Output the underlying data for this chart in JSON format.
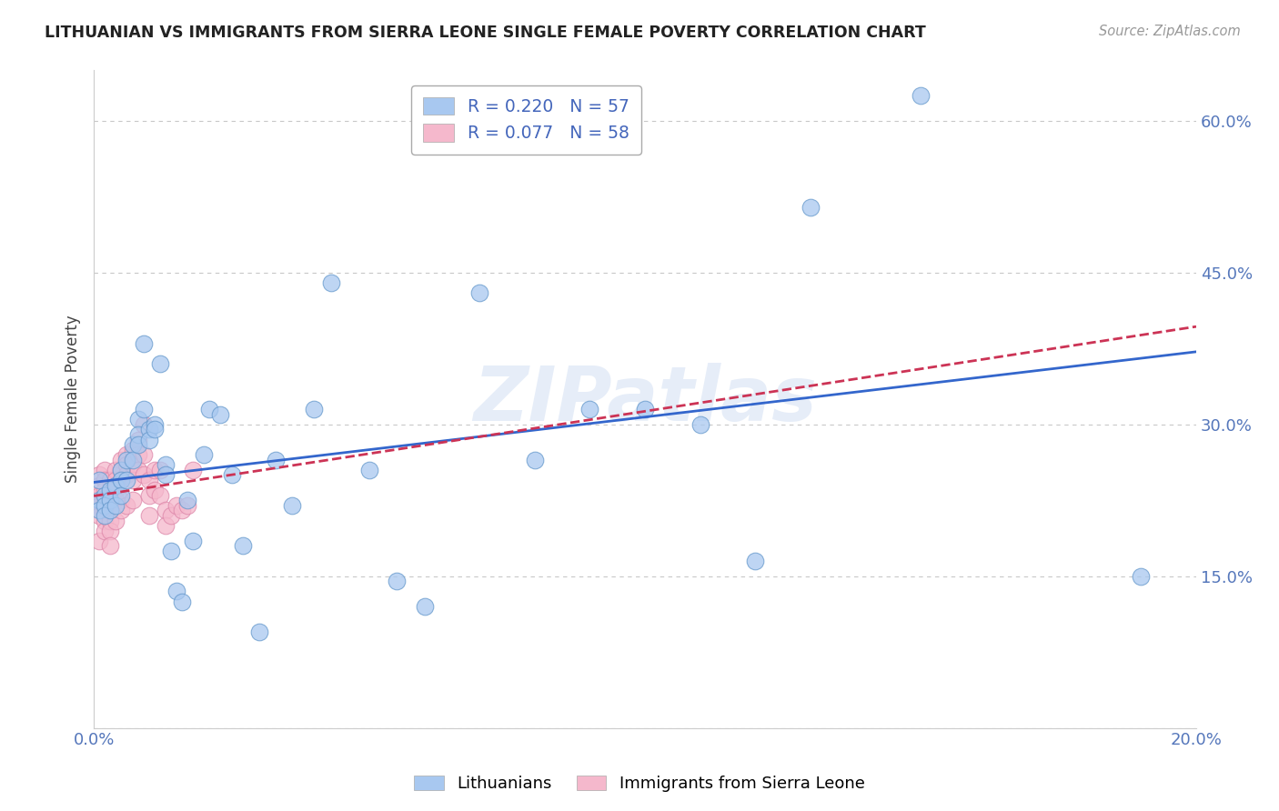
{
  "title": "LITHUANIAN VS IMMIGRANTS FROM SIERRA LEONE SINGLE FEMALE POVERTY CORRELATION CHART",
  "source": "Source: ZipAtlas.com",
  "ylabel": "Single Female Poverty",
  "xlim": [
    0.0,
    0.2
  ],
  "ylim": [
    0.0,
    0.65
  ],
  "background_color": "#ffffff",
  "grid_color": "#c8c8c8",
  "watermark_text": "ZIPatlas",
  "series": [
    {
      "name": "Lithuanians",
      "R": 0.22,
      "N": 57,
      "marker_color": "#a8c8f0",
      "marker_edge_color": "#6699cc",
      "line_color": "#3366cc",
      "line_style": "-",
      "x": [
        0.001,
        0.001,
        0.001,
        0.002,
        0.002,
        0.002,
        0.003,
        0.003,
        0.003,
        0.004,
        0.004,
        0.005,
        0.005,
        0.005,
        0.006,
        0.006,
        0.007,
        0.007,
        0.008,
        0.008,
        0.008,
        0.009,
        0.009,
        0.01,
        0.01,
        0.011,
        0.011,
        0.012,
        0.013,
        0.013,
        0.014,
        0.015,
        0.016,
        0.017,
        0.018,
        0.02,
        0.021,
        0.023,
        0.025,
        0.027,
        0.03,
        0.033,
        0.036,
        0.04,
        0.043,
        0.05,
        0.055,
        0.06,
        0.07,
        0.08,
        0.09,
        0.1,
        0.11,
        0.12,
        0.13,
        0.15,
        0.19
      ],
      "y": [
        0.245,
        0.225,
        0.215,
        0.23,
        0.22,
        0.21,
        0.235,
        0.225,
        0.215,
        0.24,
        0.22,
        0.255,
        0.245,
        0.23,
        0.265,
        0.245,
        0.28,
        0.265,
        0.305,
        0.29,
        0.28,
        0.315,
        0.38,
        0.295,
        0.285,
        0.3,
        0.295,
        0.36,
        0.26,
        0.25,
        0.175,
        0.135,
        0.125,
        0.225,
        0.185,
        0.27,
        0.315,
        0.31,
        0.25,
        0.18,
        0.095,
        0.265,
        0.22,
        0.315,
        0.44,
        0.255,
        0.145,
        0.12,
        0.43,
        0.265,
        0.315,
        0.315,
        0.3,
        0.165,
        0.515,
        0.625,
        0.15
      ]
    },
    {
      "name": "Immigrants from Sierra Leone",
      "R": 0.077,
      "N": 58,
      "marker_color": "#f5b8cc",
      "marker_edge_color": "#dd88aa",
      "line_color": "#cc3355",
      "line_style": "--",
      "x": [
        0.001,
        0.001,
        0.001,
        0.001,
        0.001,
        0.001,
        0.002,
        0.002,
        0.002,
        0.002,
        0.002,
        0.002,
        0.002,
        0.003,
        0.003,
        0.003,
        0.003,
        0.003,
        0.003,
        0.003,
        0.004,
        0.004,
        0.004,
        0.004,
        0.004,
        0.005,
        0.005,
        0.005,
        0.005,
        0.005,
        0.006,
        0.006,
        0.006,
        0.006,
        0.007,
        0.007,
        0.007,
        0.007,
        0.008,
        0.008,
        0.008,
        0.009,
        0.009,
        0.009,
        0.01,
        0.01,
        0.01,
        0.011,
        0.011,
        0.012,
        0.012,
        0.013,
        0.013,
        0.014,
        0.015,
        0.016,
        0.017,
        0.018
      ],
      "y": [
        0.25,
        0.24,
        0.23,
        0.22,
        0.21,
        0.185,
        0.255,
        0.245,
        0.235,
        0.225,
        0.215,
        0.205,
        0.195,
        0.245,
        0.235,
        0.225,
        0.215,
        0.205,
        0.195,
        0.18,
        0.255,
        0.245,
        0.235,
        0.225,
        0.205,
        0.265,
        0.255,
        0.245,
        0.225,
        0.215,
        0.27,
        0.26,
        0.25,
        0.22,
        0.275,
        0.26,
        0.245,
        0.225,
        0.285,
        0.27,
        0.255,
        0.3,
        0.27,
        0.25,
        0.245,
        0.23,
        0.21,
        0.255,
        0.235,
        0.255,
        0.23,
        0.215,
        0.2,
        0.21,
        0.22,
        0.215,
        0.22,
        0.255
      ]
    }
  ],
  "legend_items": [
    {
      "label": "R = 0.220   N = 57",
      "color": "#a8c8f0"
    },
    {
      "label": "R = 0.077   N = 58",
      "color": "#f5b8cc"
    }
  ],
  "bottom_legend_items": [
    {
      "label": "Lithuanians",
      "color": "#a8c8f0"
    },
    {
      "label": "Immigrants from Sierra Leone",
      "color": "#f5b8cc"
    }
  ],
  "x_tick_positions": [
    0.0,
    0.05,
    0.1,
    0.15,
    0.2
  ],
  "x_tick_labels": [
    "0.0%",
    "",
    "",
    "",
    "20.0%"
  ],
  "y_tick_positions": [
    0.0,
    0.15,
    0.3,
    0.45,
    0.6
  ],
  "y_tick_labels": [
    "",
    "15.0%",
    "30.0%",
    "45.0%",
    "60.0%"
  ]
}
